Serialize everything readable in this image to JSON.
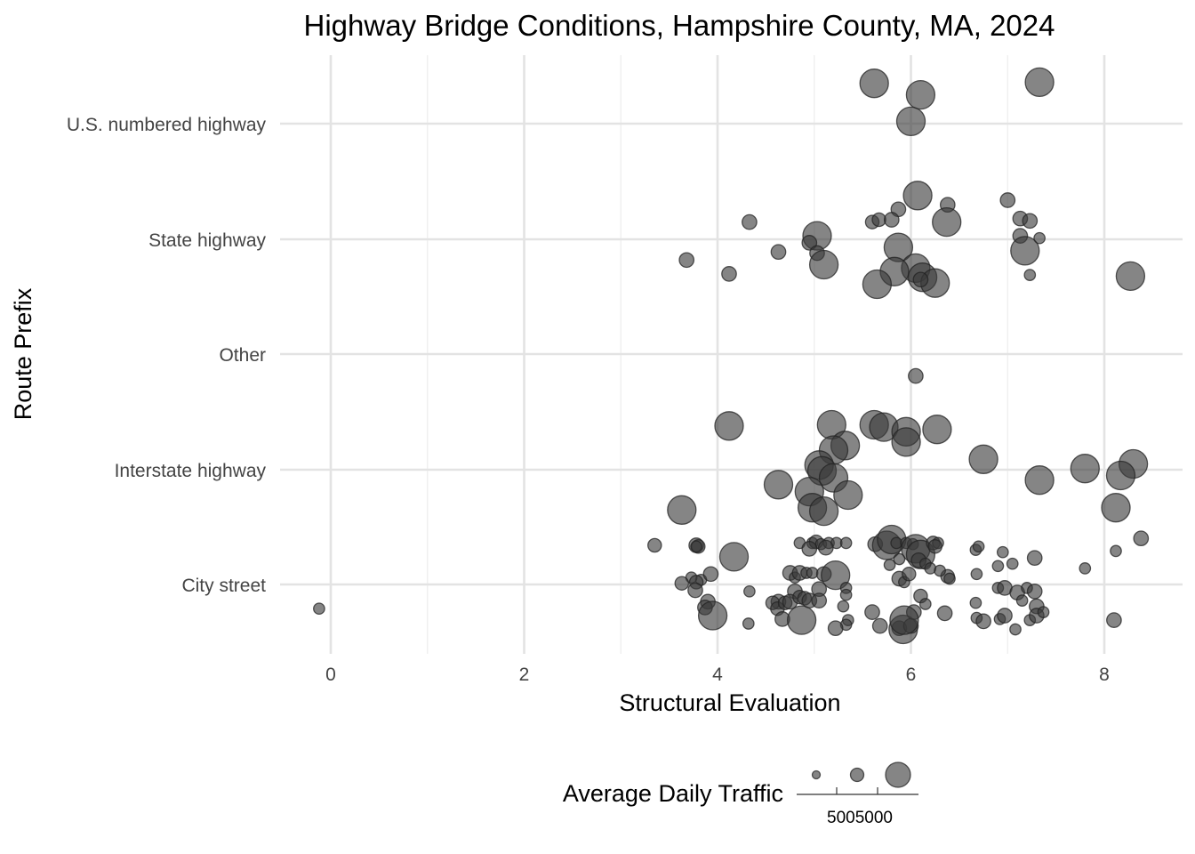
{
  "chart_data": {
    "type": "scatter",
    "title": "Highway Bridge Conditions, Hampshire County, MA, 2024",
    "xlabel": "Structural Evaluation",
    "ylabel": "Route Prefix",
    "xlim": [
      -0.5,
      8.8
    ],
    "x_ticks": [
      "0",
      "2",
      "4",
      "6",
      "8"
    ],
    "categories": [
      "City street",
      "Interstate highway",
      "Other",
      "State highway",
      "U.S. numbered highway"
    ],
    "grid": true,
    "legend": {
      "title": "Average Daily Traffic",
      "position": "bottom",
      "labels": [
        "500",
        "5000"
      ],
      "label_text": "5005000",
      "key_sizes": [
        50,
        1000,
        10000
      ]
    },
    "point_color": "#3a3a3a",
    "point_alpha": 0.62,
    "series": [
      {
        "category": "U.S. numbered highway",
        "points": [
          [
            5.62,
            0.35,
            9000
          ],
          [
            6.1,
            0.25,
            9000
          ],
          [
            7.33,
            0.36,
            9000
          ],
          [
            6.0,
            0.02,
            9000
          ]
        ]
      },
      {
        "category": "State highway",
        "points": [
          [
            6.07,
            0.38,
            9000
          ],
          [
            6.38,
            0.3,
            1500
          ],
          [
            7.0,
            0.34,
            1500
          ],
          [
            5.87,
            0.26,
            1500
          ],
          [
            5.6,
            0.15,
            1200
          ],
          [
            5.67,
            0.17,
            1200
          ],
          [
            5.8,
            0.17,
            1500
          ],
          [
            6.37,
            0.15,
            9000
          ],
          [
            4.33,
            0.15,
            1500
          ],
          [
            7.13,
            0.18,
            1500
          ],
          [
            7.23,
            0.16,
            1500
          ],
          [
            5.03,
            0.03,
            9000
          ],
          [
            4.95,
            -0.03,
            1500
          ],
          [
            7.13,
            0.03,
            1500
          ],
          [
            7.33,
            0.01,
            600
          ],
          [
            5.87,
            -0.07,
            9000
          ],
          [
            4.63,
            -0.11,
            1500
          ],
          [
            5.03,
            -0.12,
            1500
          ],
          [
            7.18,
            -0.1,
            9000
          ],
          [
            3.68,
            -0.18,
            1500
          ],
          [
            5.1,
            -0.22,
            9000
          ],
          [
            6.05,
            -0.25,
            9000
          ],
          [
            4.12,
            -0.3,
            1500
          ],
          [
            5.83,
            -0.28,
            9000
          ],
          [
            7.23,
            -0.31,
            600
          ],
          [
            8.27,
            -0.32,
            9000
          ],
          [
            6.12,
            -0.33,
            9000
          ],
          [
            6.25,
            -0.38,
            9000
          ],
          [
            5.65,
            -0.39,
            9000
          ],
          [
            6.1,
            -0.35,
            1500
          ]
        ]
      },
      {
        "category": "Other",
        "points": [
          [
            6.05,
            -0.19,
            1500
          ]
        ]
      },
      {
        "category": "Interstate highway",
        "points": [
          [
            4.12,
            0.38,
            9000
          ],
          [
            5.18,
            0.39,
            9000
          ],
          [
            5.62,
            0.39,
            9000
          ],
          [
            5.72,
            0.37,
            9000
          ],
          [
            5.95,
            0.33,
            9000
          ],
          [
            6.27,
            0.35,
            9000
          ],
          [
            5.95,
            0.24,
            9000
          ],
          [
            5.32,
            0.21,
            9000
          ],
          [
            5.2,
            0.17,
            9000
          ],
          [
            6.75,
            0.09,
            9000
          ],
          [
            7.8,
            0.01,
            9000
          ],
          [
            8.3,
            0.05,
            9000
          ],
          [
            5.05,
            0.04,
            9000
          ],
          [
            5.08,
            -0.01,
            9000
          ],
          [
            5.2,
            -0.07,
            9000
          ],
          [
            4.63,
            -0.13,
            9000
          ],
          [
            4.95,
            -0.19,
            9000
          ],
          [
            5.35,
            -0.22,
            9000
          ],
          [
            7.33,
            -0.09,
            9000
          ],
          [
            8.17,
            -0.05,
            9000
          ],
          [
            3.63,
            -0.35,
            9000
          ],
          [
            4.98,
            -0.33,
            9000
          ],
          [
            5.1,
            -0.36,
            9000
          ],
          [
            8.12,
            -0.33,
            9000
          ]
        ]
      },
      {
        "category": "City street",
        "points": [
          [
            -0.12,
            -0.21,
            600
          ],
          [
            3.35,
            0.34,
            1200
          ],
          [
            3.78,
            0.34,
            1500
          ],
          [
            3.8,
            0.33,
            1200
          ],
          [
            3.78,
            0.33,
            600
          ],
          [
            4.17,
            0.24,
            9000
          ],
          [
            4.85,
            0.36,
            600
          ],
          [
            4.98,
            0.36,
            600
          ],
          [
            5.02,
            0.37,
            1200
          ],
          [
            5.07,
            0.35,
            600
          ],
          [
            5.15,
            0.36,
            600
          ],
          [
            5.23,
            0.36,
            600
          ],
          [
            5.33,
            0.36,
            600
          ],
          [
            4.95,
            0.31,
            1500
          ],
          [
            5.12,
            0.32,
            1500
          ],
          [
            5.63,
            0.35,
            1500
          ],
          [
            5.75,
            0.34,
            9000
          ],
          [
            5.8,
            0.39,
            9000
          ],
          [
            5.85,
            0.36,
            600
          ],
          [
            5.95,
            0.36,
            600
          ],
          [
            6.02,
            0.35,
            600
          ],
          [
            6.05,
            0.31,
            9000
          ],
          [
            6.1,
            0.26,
            9000
          ],
          [
            6.23,
            0.36,
            1200
          ],
          [
            6.28,
            0.36,
            600
          ],
          [
            6.25,
            0.33,
            1200
          ],
          [
            6.67,
            0.3,
            600
          ],
          [
            6.7,
            0.33,
            600
          ],
          [
            6.95,
            0.28,
            600
          ],
          [
            7.28,
            0.23,
            1500
          ],
          [
            8.38,
            0.4,
            1500
          ],
          [
            8.12,
            0.29,
            600
          ],
          [
            3.83,
            0.04,
            600
          ],
          [
            3.73,
            0.06,
            600
          ],
          [
            3.93,
            0.09,
            1500
          ],
          [
            3.78,
            0.02,
            1200
          ],
          [
            3.63,
            0.01,
            1200
          ],
          [
            3.77,
            -0.05,
            1500
          ],
          [
            3.9,
            -0.15,
            1500
          ],
          [
            3.87,
            -0.2,
            1500
          ],
          [
            3.95,
            -0.27,
            9000
          ],
          [
            4.33,
            -0.06,
            600
          ],
          [
            4.32,
            -0.34,
            600
          ],
          [
            4.63,
            -0.15,
            1500
          ],
          [
            4.57,
            -0.16,
            1200
          ],
          [
            4.62,
            -0.21,
            1200
          ],
          [
            4.7,
            -0.16,
            1200
          ],
          [
            4.67,
            -0.3,
            1500
          ],
          [
            4.8,
            -0.06,
            1500
          ],
          [
            4.75,
            -0.15,
            1500
          ],
          [
            4.85,
            -0.11,
            1200
          ],
          [
            4.9,
            -0.12,
            1200
          ],
          [
            4.95,
            -0.14,
            1500
          ],
          [
            4.87,
            -0.31,
            9000
          ],
          [
            4.75,
            0.1,
            1500
          ],
          [
            4.8,
            0.06,
            600
          ],
          [
            4.85,
            0.1,
            1500
          ],
          [
            4.92,
            0.1,
            600
          ],
          [
            4.98,
            0.1,
            600
          ],
          [
            5.1,
            0.09,
            1500
          ],
          [
            5.22,
            0.08,
            9000
          ],
          [
            5.05,
            -0.04,
            1500
          ],
          [
            5.05,
            -0.14,
            1500
          ],
          [
            5.33,
            -0.03,
            600
          ],
          [
            5.33,
            -0.09,
            600
          ],
          [
            5.3,
            -0.19,
            600
          ],
          [
            5.35,
            -0.31,
            600
          ],
          [
            5.33,
            -0.35,
            600
          ],
          [
            5.22,
            -0.38,
            1500
          ],
          [
            5.6,
            -0.24,
            1500
          ],
          [
            5.68,
            -0.36,
            1500
          ],
          [
            5.88,
            -0.38,
            1500
          ],
          [
            5.92,
            -0.39,
            9000
          ],
          [
            6.0,
            -0.36,
            1500
          ],
          [
            6.03,
            -0.24,
            1500
          ],
          [
            5.93,
            -0.31,
            9000
          ],
          [
            5.88,
            0.05,
            1500
          ],
          [
            5.93,
            0.02,
            600
          ],
          [
            5.98,
            0.09,
            1200
          ],
          [
            5.78,
            0.17,
            600
          ],
          [
            5.88,
            0.22,
            600
          ],
          [
            6.08,
            0.21,
            1500
          ],
          [
            6.15,
            0.18,
            600
          ],
          [
            6.2,
            0.14,
            600
          ],
          [
            6.38,
            0.07,
            1200
          ],
          [
            6.4,
            0.05,
            600
          ],
          [
            6.68,
            0.09,
            600
          ],
          [
            6.9,
            0.16,
            600
          ],
          [
            7.05,
            0.18,
            600
          ],
          [
            7.8,
            0.14,
            600
          ],
          [
            6.3,
            0.12,
            600
          ],
          [
            6.1,
            -0.1,
            1200
          ],
          [
            6.15,
            -0.17,
            600
          ],
          [
            6.35,
            -0.25,
            1500
          ],
          [
            6.67,
            -0.16,
            600
          ],
          [
            6.68,
            -0.29,
            600
          ],
          [
            6.75,
            -0.32,
            1500
          ],
          [
            6.9,
            -0.03,
            600
          ],
          [
            6.97,
            -0.03,
            1500
          ],
          [
            6.92,
            -0.3,
            600
          ],
          [
            6.97,
            -0.27,
            1500
          ],
          [
            7.08,
            -0.39,
            600
          ],
          [
            7.1,
            -0.07,
            1500
          ],
          [
            7.15,
            -0.14,
            600
          ],
          [
            7.2,
            -0.03,
            600
          ],
          [
            7.28,
            -0.06,
            1500
          ],
          [
            7.3,
            -0.19,
            1500
          ],
          [
            7.23,
            -0.31,
            600
          ],
          [
            7.3,
            -0.27,
            1500
          ],
          [
            7.37,
            -0.24,
            600
          ],
          [
            8.1,
            -0.31,
            1500
          ]
        ]
      }
    ]
  }
}
